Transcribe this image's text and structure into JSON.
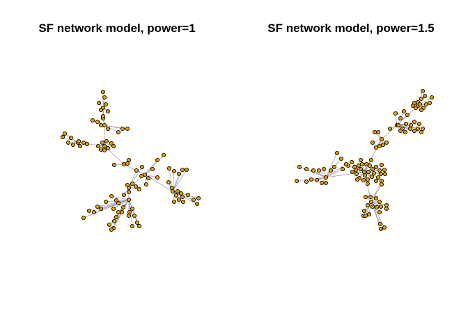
{
  "plots": [
    {
      "title": "SF network model, power=1"
    },
    {
      "title": "SF network model, power=1.5"
    }
  ],
  "colors": {
    "node_fill": "#e69f00",
    "node_stroke": "#000000",
    "edge": "#a0a0a0",
    "background": "#ffffff"
  }
}
